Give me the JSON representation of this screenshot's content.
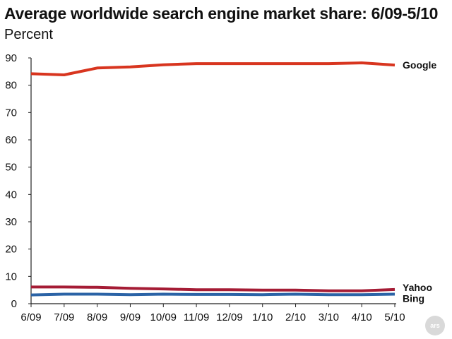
{
  "chart_data": {
    "type": "line",
    "title": "Average worldwide search engine market share: 6/09-5/10",
    "subtitle": "Percent",
    "xlabel": "",
    "ylabel": "",
    "categories": [
      "6/09",
      "7/09",
      "8/09",
      "9/09",
      "10/09",
      "11/09",
      "12/09",
      "1/10",
      "2/10",
      "3/10",
      "4/10",
      "5/10"
    ],
    "ylim": [
      0,
      90
    ],
    "yticks": [
      0,
      10,
      20,
      30,
      40,
      50,
      60,
      70,
      80,
      90
    ],
    "grid": false,
    "series": [
      {
        "name": "Google",
        "color": "#d8351f",
        "values": [
          84.2,
          83.8,
          86.3,
          86.7,
          87.5,
          87.9,
          87.9,
          87.9,
          87.9,
          87.9,
          88.2,
          87.4
        ]
      },
      {
        "name": "Yahoo",
        "color": "#a51c35",
        "values": [
          6.1,
          6.1,
          6.0,
          5.6,
          5.4,
          5.1,
          5.1,
          5.0,
          5.0,
          4.7,
          4.7,
          5.2
        ]
      },
      {
        "name": "Bing",
        "color": "#2b63a6",
        "values": [
          3.2,
          3.5,
          3.5,
          3.3,
          3.5,
          3.4,
          3.4,
          3.3,
          3.5,
          3.3,
          3.3,
          3.5
        ]
      }
    ]
  },
  "watermark": "ars"
}
